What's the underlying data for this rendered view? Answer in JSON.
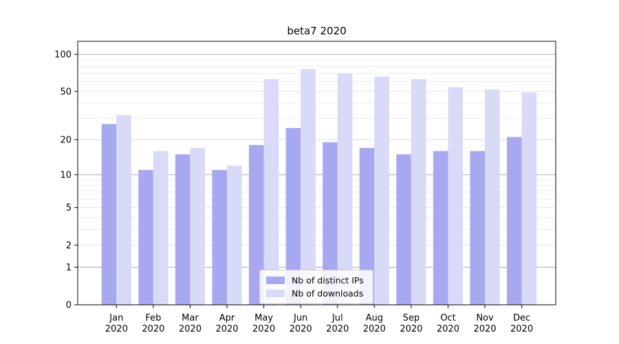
{
  "chart_data": {
    "type": "bar",
    "title": "beta7 2020",
    "y_scale": "symlog (position ~ log(1+v))",
    "categories": [
      "Jan",
      "Feb",
      "Mar",
      "Apr",
      "May",
      "Jun",
      "Jul",
      "Aug",
      "Sep",
      "Oct",
      "Nov",
      "Dec"
    ],
    "x_year_label": "2020",
    "series": [
      {
        "name": "Nb of distinct IPs",
        "color": "#a8a8f0",
        "values": [
          27,
          11,
          15,
          11,
          18,
          25,
          19,
          17,
          15,
          16,
          16,
          21
        ]
      },
      {
        "name": "Nb of downloads",
        "color": "#d9d9f8",
        "values": [
          32,
          16,
          17,
          12,
          63,
          76,
          70,
          66,
          63,
          54,
          52,
          49
        ]
      }
    ],
    "y_major_ticks": [
      0,
      1,
      2,
      5,
      10,
      20,
      50,
      100
    ],
    "y_sub_gridlines": [
      2,
      5,
      20,
      50
    ],
    "y_minor_gridlines": [
      3,
      4,
      6,
      7,
      8,
      9,
      30,
      40,
      60,
      70,
      80,
      90
    ],
    "ylim": [
      0,
      127
    ],
    "grid": true,
    "legend_position": "lower center",
    "colors": {
      "decade_gridline": "#ababab",
      "minor_gridline": "#e7e7e7",
      "sub_gridline": "#dedede",
      "spine": "#000000",
      "tick_label": "#000000",
      "background": "#ffffff"
    }
  }
}
